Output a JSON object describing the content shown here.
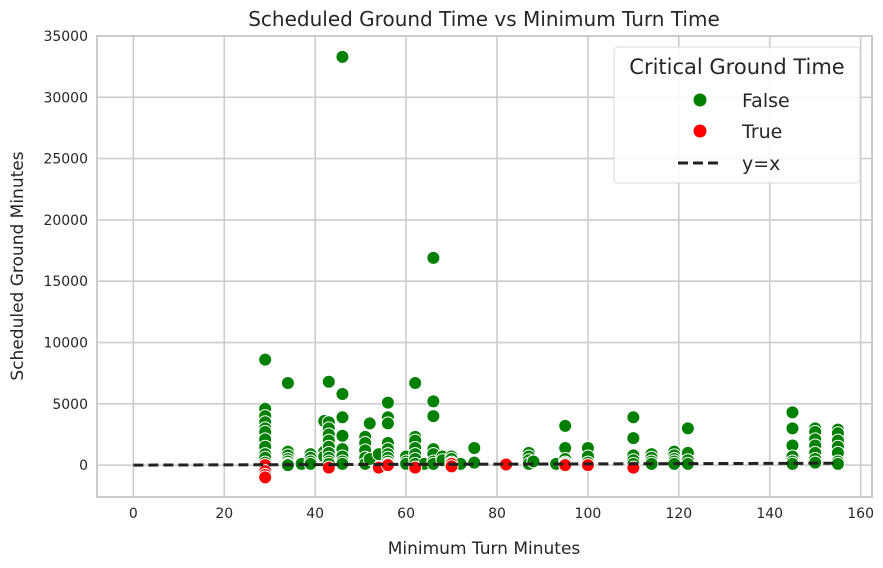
{
  "chart_data": {
    "type": "scatter",
    "title": "Scheduled Ground Time vs Minimum Turn Time",
    "xlabel": "Minimum Turn Minutes",
    "ylabel": "Scheduled Ground Minutes",
    "xlim": [
      -8,
      162.5
    ],
    "ylim": [
      -2600,
      35000
    ],
    "xticks": [
      0,
      20,
      40,
      60,
      80,
      100,
      120,
      140,
      160
    ],
    "yticks": [
      0,
      5000,
      10000,
      15000,
      20000,
      25000,
      30000,
      35000
    ],
    "grid": true,
    "legend": {
      "title": "Critical Ground Time",
      "placement": "top-right",
      "entries": [
        {
          "label": "False",
          "color": "#008000",
          "kind": "marker"
        },
        {
          "label": "True",
          "color": "#ff0000",
          "kind": "marker"
        },
        {
          "label": "y=x",
          "color": "#222222",
          "kind": "dashed-line"
        }
      ]
    },
    "reference_line": {
      "label": "y=x",
      "x": [
        0,
        155
      ],
      "y": [
        0,
        155
      ]
    },
    "series": [
      {
        "name": "False",
        "color": "#008000",
        "points": [
          [
            29,
            8600
          ],
          [
            29,
            4600
          ],
          [
            29,
            4000
          ],
          [
            29,
            3500
          ],
          [
            29,
            3000
          ],
          [
            29,
            2700
          ],
          [
            29,
            2100
          ],
          [
            29,
            1500
          ],
          [
            29,
            900
          ],
          [
            29,
            600
          ],
          [
            29,
            200
          ],
          [
            34,
            6700
          ],
          [
            34,
            1100
          ],
          [
            34,
            800
          ],
          [
            34,
            500
          ],
          [
            34,
            300
          ],
          [
            34,
            100
          ],
          [
            34,
            0
          ],
          [
            37,
            100
          ],
          [
            39,
            900
          ],
          [
            39,
            600
          ],
          [
            39,
            300
          ],
          [
            39,
            100
          ],
          [
            42,
            3600
          ],
          [
            42,
            1100
          ],
          [
            42,
            700
          ],
          [
            43,
            6800
          ],
          [
            43,
            3500
          ],
          [
            43,
            3000
          ],
          [
            43,
            2500
          ],
          [
            43,
            2000
          ],
          [
            43,
            1500
          ],
          [
            43,
            1000
          ],
          [
            43,
            600
          ],
          [
            43,
            300
          ],
          [
            43,
            100
          ],
          [
            46,
            33300
          ],
          [
            46,
            5800
          ],
          [
            46,
            3900
          ],
          [
            46,
            2400
          ],
          [
            46,
            1300
          ],
          [
            46,
            700
          ],
          [
            46,
            300
          ],
          [
            46,
            100
          ],
          [
            51,
            2300
          ],
          [
            51,
            1800
          ],
          [
            51,
            1200
          ],
          [
            51,
            600
          ],
          [
            51,
            100
          ],
          [
            52,
            3400
          ],
          [
            52,
            500
          ],
          [
            54,
            900
          ],
          [
            56,
            5100
          ],
          [
            56,
            3900
          ],
          [
            56,
            3400
          ],
          [
            56,
            1800
          ],
          [
            56,
            1300
          ],
          [
            56,
            900
          ],
          [
            56,
            600
          ],
          [
            56,
            300
          ],
          [
            56,
            100
          ],
          [
            60,
            700
          ],
          [
            60,
            300
          ],
          [
            60,
            100
          ],
          [
            62,
            6700
          ],
          [
            62,
            2300
          ],
          [
            62,
            2000
          ],
          [
            62,
            1400
          ],
          [
            62,
            900
          ],
          [
            62,
            500
          ],
          [
            62,
            100
          ],
          [
            64,
            100
          ],
          [
            66,
            16900
          ],
          [
            66,
            5200
          ],
          [
            66,
            4000
          ],
          [
            66,
            1300
          ],
          [
            66,
            900
          ],
          [
            66,
            300
          ],
          [
            66,
            100
          ],
          [
            68,
            700
          ],
          [
            68,
            400
          ],
          [
            70,
            700
          ],
          [
            70,
            500
          ],
          [
            70,
            200
          ],
          [
            72,
            100
          ],
          [
            75,
            1400
          ],
          [
            75,
            200
          ],
          [
            87,
            1000
          ],
          [
            87,
            700
          ],
          [
            87,
            400
          ],
          [
            87,
            100
          ],
          [
            88,
            300
          ],
          [
            93,
            100
          ],
          [
            95,
            3200
          ],
          [
            95,
            1400
          ],
          [
            95,
            500
          ],
          [
            95,
            200
          ],
          [
            95,
            100
          ],
          [
            100,
            1400
          ],
          [
            100,
            700
          ],
          [
            100,
            200
          ],
          [
            110,
            3900
          ],
          [
            110,
            2200
          ],
          [
            110,
            800
          ],
          [
            110,
            400
          ],
          [
            110,
            100
          ],
          [
            114,
            900
          ],
          [
            114,
            600
          ],
          [
            114,
            300
          ],
          [
            114,
            100
          ],
          [
            119,
            1100
          ],
          [
            119,
            800
          ],
          [
            119,
            500
          ],
          [
            119,
            300
          ],
          [
            119,
            100
          ],
          [
            122,
            3000
          ],
          [
            122,
            1000
          ],
          [
            122,
            400
          ],
          [
            122,
            100
          ],
          [
            145,
            4300
          ],
          [
            145,
            3000
          ],
          [
            145,
            1600
          ],
          [
            145,
            700
          ],
          [
            145,
            300
          ],
          [
            145,
            100
          ],
          [
            150,
            3000
          ],
          [
            150,
            2700
          ],
          [
            150,
            2100
          ],
          [
            150,
            1600
          ],
          [
            150,
            1000
          ],
          [
            150,
            500
          ],
          [
            150,
            200
          ],
          [
            155,
            2900
          ],
          [
            155,
            2600
          ],
          [
            155,
            2000
          ],
          [
            155,
            1500
          ],
          [
            155,
            1000
          ],
          [
            155,
            300
          ],
          [
            155,
            100
          ]
        ]
      },
      {
        "name": "True",
        "color": "#ff0000",
        "points": [
          [
            29,
            0
          ],
          [
            29,
            -500
          ],
          [
            29,
            -800
          ],
          [
            29,
            -1000
          ],
          [
            43,
            -200
          ],
          [
            54,
            -200
          ],
          [
            56,
            0
          ],
          [
            62,
            -200
          ],
          [
            70,
            100
          ],
          [
            70,
            -100
          ],
          [
            82,
            50
          ],
          [
            95,
            0
          ],
          [
            100,
            0
          ],
          [
            110,
            -200
          ]
        ]
      }
    ]
  }
}
